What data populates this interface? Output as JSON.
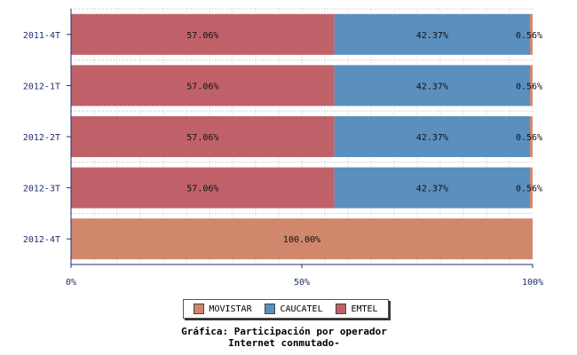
{
  "chart_data": {
    "type": "bar",
    "orientation": "horizontal",
    "stacked": true,
    "title": "Gráfica: Participación por operador",
    "subtitle": "Internet conmutado-",
    "categories": [
      "2011-4T",
      "2012-1T",
      "2012-2T",
      "2012-3T",
      "2012-4T"
    ],
    "series": [
      {
        "name": "EMTEL",
        "color": "#c0616a",
        "values": [
          57.06,
          57.06,
          57.06,
          57.06,
          0
        ]
      },
      {
        "name": "CAUCATEL",
        "color": "#5b8fbe",
        "values": [
          42.37,
          42.37,
          42.37,
          42.37,
          0
        ]
      },
      {
        "name": "MOVISTAR",
        "color": "#d0876c",
        "values": [
          0.56,
          0.56,
          0.56,
          0.56,
          100
        ]
      }
    ],
    "data_labels": [
      [
        "57.06%",
        "42.37%",
        "0.56%"
      ],
      [
        "57.06%",
        "42.37%",
        "0.56%"
      ],
      [
        "57.06%",
        "42.37%",
        "0.56%"
      ],
      [
        "57.06%",
        "42.37%",
        "0.56%"
      ],
      [
        "",
        "",
        "100.00%"
      ]
    ],
    "x_ticks": [
      "0%",
      "50%",
      "100%"
    ],
    "xlim": [
      0,
      100
    ],
    "legend_position": "bottom-center",
    "legend": [
      {
        "name": "MOVISTAR",
        "color": "#d0876c"
      },
      {
        "name": "CAUCATEL",
        "color": "#5b8fbe"
      },
      {
        "name": "EMTEL",
        "color": "#c0616a"
      }
    ]
  }
}
